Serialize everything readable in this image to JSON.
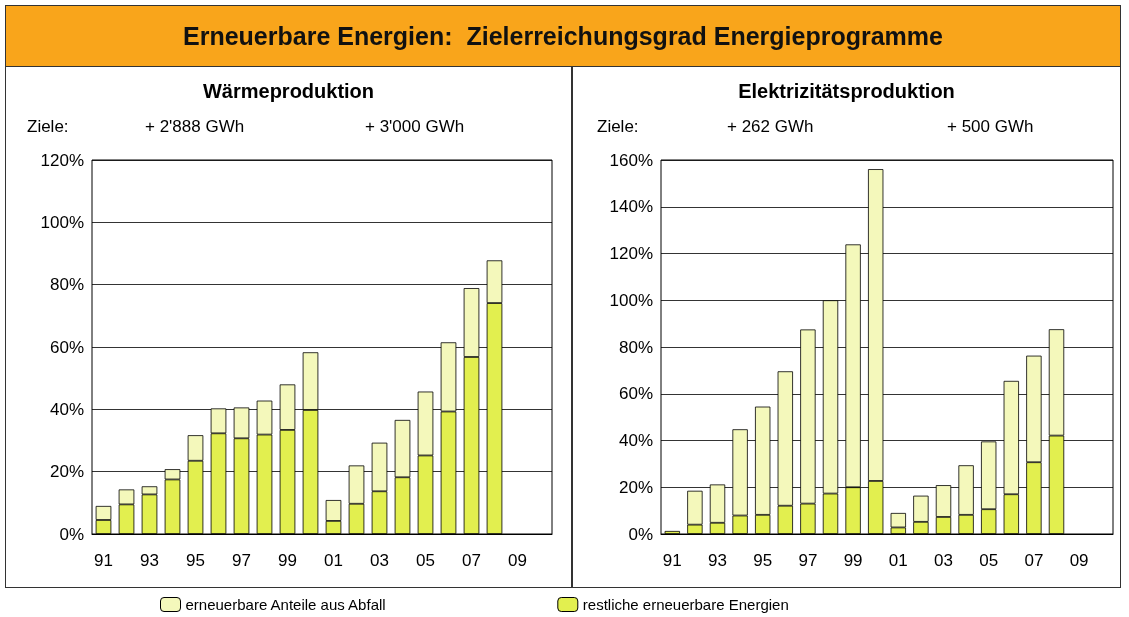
{
  "chart_data": [
    {
      "type": "bar",
      "stacked": true,
      "title": "Erneuerbare Energien:  Zielerreichungsgrad Energieprogramme",
      "subtitle": "Wärmeproduktion",
      "annotations": [
        "Ziele:",
        "+ 2'888 GWh",
        "+ 3'000 GWh"
      ],
      "categories": [
        "91",
        null,
        "93",
        null,
        "95",
        null,
        "97",
        null,
        "99",
        null,
        "01",
        null,
        "03",
        null,
        "05",
        null,
        "07",
        null,
        "09",
        null
      ],
      "series": [
        {
          "name": "restliche erneuerbare Energien",
          "color": "#e2ef4f",
          "values": [
            4.5,
            9.5,
            12.7,
            17.5,
            23.5,
            32.3,
            30.7,
            31.9,
            33.4,
            39.8,
            4.2,
            9.7,
            13.7,
            18.2,
            25.2,
            39.3,
            56.8,
            74.1,
            null,
            null
          ]
        },
        {
          "name": "erneuerbare Anteile aus Abfall",
          "color": "#f4f8bb",
          "values": [
            4.5,
            4.8,
            2.6,
            3.3,
            8.2,
            8,
            9.9,
            10.9,
            14.6,
            18.5,
            6.7,
            12.3,
            15.6,
            18.4,
            20.5,
            22.2,
            22.1,
            13.7,
            null,
            null
          ]
        }
      ],
      "ylim": [
        0,
        120
      ],
      "yticks": [
        {
          "value": 0,
          "label": "0%"
        },
        {
          "value": 20,
          "label": "20%"
        },
        {
          "value": 40,
          "label": "40%"
        },
        {
          "value": 60,
          "label": "60%"
        },
        {
          "value": 80,
          "label": "80%"
        },
        {
          "value": 100,
          "label": "100%"
        },
        {
          "value": 120,
          "label": "120%"
        }
      ],
      "grid": "y",
      "legend": "bottom"
    },
    {
      "type": "bar",
      "stacked": true,
      "title": "Elektrizitätsproduktion",
      "annotations": [
        "Ziele:",
        "+ 262 GWh",
        "+ 500 GWh"
      ],
      "categories": [
        "91",
        null,
        "93",
        null,
        "95",
        null,
        "97",
        null,
        "99",
        null,
        "01",
        null,
        "03",
        null,
        "05",
        null,
        "07",
        null,
        "09",
        null
      ],
      "series": [
        {
          "color": "#e2ef4f",
          "values": [
            1.3,
            4,
            4.8,
            7.9,
            8.2,
            12.1,
            13,
            17.3,
            20,
            22.7,
            2.8,
            5.2,
            7.3,
            8.2,
            10.6,
            17,
            30.7,
            42.1,
            null,
            null
          ]
        },
        {
          "color": "#f4f8bb",
          "values": [
            null,
            14.5,
            16.4,
            36.9,
            46.3,
            57.5,
            74.5,
            82.7,
            103.9,
            133.4,
            6.2,
            11.2,
            13.6,
            21.2,
            29,
            48.5,
            45.6,
            45.5,
            null,
            null
          ]
        }
      ],
      "ylim": [
        0,
        160
      ],
      "yticks": [
        {
          "value": 0,
          "label": "0%"
        },
        {
          "value": 20,
          "label": "20%"
        },
        {
          "value": 40,
          "label": "40%"
        },
        {
          "value": 60,
          "label": "60%"
        },
        {
          "value": 80,
          "label": "80%"
        },
        {
          "value": 100,
          "label": "100%"
        },
        {
          "value": 120,
          "label": "120%"
        },
        {
          "value": 140,
          "label": "140%"
        },
        {
          "value": 160,
          "label": "160%"
        }
      ],
      "grid": "y"
    }
  ]
}
